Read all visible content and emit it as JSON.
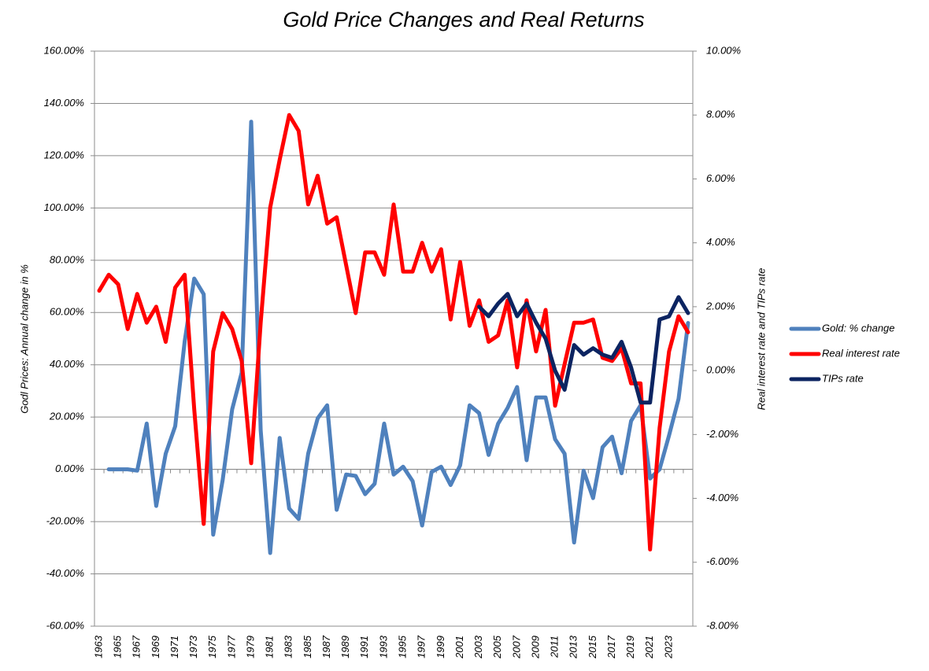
{
  "chart_data": {
    "type": "line",
    "title": "Gold Price Changes and Real Returns",
    "y_label": "Godl Prices: Annual change in %",
    "y2_label": "Real interest rate and TIPs rate",
    "categories": [
      "1963",
      null,
      "1965",
      null,
      "1967",
      null,
      "1969",
      null,
      "1971",
      null,
      "1973",
      null,
      "1975",
      null,
      "1977",
      null,
      "1979",
      null,
      "1981",
      null,
      "1983",
      null,
      "1985",
      null,
      "1987",
      null,
      "1989",
      null,
      "1991",
      null,
      "1993",
      null,
      "1995",
      null,
      "1997",
      null,
      "1999",
      null,
      "2001",
      null,
      "2003",
      null,
      "2005",
      null,
      "2007",
      null,
      "2009",
      null,
      "2011",
      null,
      "2013",
      null,
      "2015",
      null,
      "2017",
      null,
      "2019",
      null,
      "2021",
      null,
      "2023",
      null,
      null
    ],
    "series": [
      {
        "name": "Gold: % change",
        "color": "#4f81bd",
        "axis": "y",
        "values": [
          null,
          0,
          0,
          0,
          -0.5,
          17.5,
          -14,
          6,
          16.5,
          49,
          73,
          67,
          -25,
          -4,
          23,
          37,
          133,
          15,
          -32,
          12,
          -15,
          -19,
          6,
          19.5,
          24.5,
          -15.5,
          -2,
          -2.5,
          -9.5,
          -5.5,
          17.5,
          -2,
          1,
          -4.5,
          -21.5,
          -1,
          1,
          -6,
          1.5,
          24.5,
          21.5,
          5.5,
          17.5,
          23.5,
          31.5,
          3.5,
          27.5,
          27.5,
          11.5,
          6,
          -28,
          -0.5,
          -11,
          8.5,
          12.5,
          -1.5,
          18.5,
          24.5,
          -3.5,
          0,
          13,
          27,
          56
        ]
      },
      {
        "name": "Real interest rate",
        "color": "#ff0000",
        "axis": "y2",
        "values": [
          2.5,
          3.0,
          2.7,
          1.3,
          2.4,
          1.5,
          2.0,
          0.9,
          2.6,
          3.0,
          -1.2,
          -4.8,
          0.6,
          1.8,
          1.3,
          0.3,
          -2.9,
          1.5,
          5.1,
          6.6,
          8.0,
          7.5,
          5.2,
          6.1,
          4.6,
          4.8,
          3.3,
          1.8,
          3.7,
          3.7,
          3.0,
          5.2,
          3.1,
          3.1,
          4.0,
          3.1,
          3.8,
          1.6,
          3.4,
          1.4,
          2.2,
          0.9,
          1.1,
          2.2,
          0.1,
          2.2,
          0.6,
          1.9,
          -1.1,
          0.2,
          1.5,
          1.5,
          1.6,
          0.4,
          0.3,
          0.7,
          -0.4,
          -0.4,
          -5.6,
          -1.8,
          0.6,
          1.7,
          1.2
        ]
      },
      {
        "name": "TIPs rate",
        "color": "#0c2461",
        "axis": "y2",
        "values": [
          null,
          null,
          null,
          null,
          null,
          null,
          null,
          null,
          null,
          null,
          null,
          null,
          null,
          null,
          null,
          null,
          null,
          null,
          null,
          null,
          null,
          null,
          null,
          null,
          null,
          null,
          null,
          null,
          null,
          null,
          null,
          null,
          null,
          null,
          null,
          null,
          null,
          null,
          null,
          null,
          2.0,
          1.7,
          2.1,
          2.4,
          1.7,
          2.1,
          1.5,
          1.0,
          0.0,
          -0.6,
          0.8,
          0.5,
          0.7,
          0.5,
          0.4,
          0.9,
          0.1,
          -1.0,
          -1.0,
          1.6,
          1.7,
          2.3,
          1.8
        ]
      }
    ],
    "ylim": [
      -60,
      160
    ],
    "yticks": [
      {
        "value": -60,
        "label": "-60.00%"
      },
      {
        "value": -40,
        "label": "-40.00%"
      },
      {
        "value": -20,
        "label": "-20.00%"
      },
      {
        "value": 0,
        "label": "0.00%"
      },
      {
        "value": 20,
        "label": "20.00%"
      },
      {
        "value": 40,
        "label": "40.00%"
      },
      {
        "value": 60,
        "label": "60.00%"
      },
      {
        "value": 80,
        "label": "80.00%"
      },
      {
        "value": 100,
        "label": "100.00%"
      },
      {
        "value": 120,
        "label": "120.00%"
      },
      {
        "value": 140,
        "label": "140.00%"
      },
      {
        "value": 160,
        "label": "160.00%"
      }
    ],
    "y2lim": [
      -8,
      10
    ],
    "y2ticks": [
      {
        "value": -8,
        "label": "-8.00%"
      },
      {
        "value": -6,
        "label": "-6.00%"
      },
      {
        "value": -4,
        "label": "-4.00%"
      },
      {
        "value": -2,
        "label": "-2.00%"
      },
      {
        "value": 0,
        "label": "0.00%"
      },
      {
        "value": 2,
        "label": "2.00%"
      },
      {
        "value": 4,
        "label": "4.00%"
      },
      {
        "value": 6,
        "label": "6.00%"
      },
      {
        "value": 8,
        "label": "8.00%"
      },
      {
        "value": 10,
        "label": "10.00%"
      }
    ],
    "grid": true,
    "legend": "right"
  }
}
